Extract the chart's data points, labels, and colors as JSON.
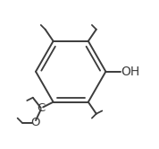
{
  "background_color": "#ffffff",
  "line_color": "#3c3c3c",
  "line_width": 1.4,
  "oh_label": "OH",
  "c_label": "C",
  "o_label": "O",
  "oh_fontsize": 10,
  "label_fontsize": 9.5
}
